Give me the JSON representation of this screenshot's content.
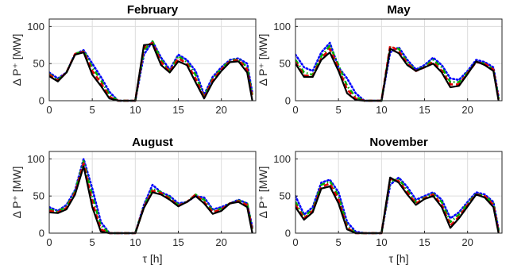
{
  "chart_data": [
    {
      "type": "line",
      "title": "February",
      "xlabel": "",
      "ylabel": "Δ P⁺ [MW]",
      "xlim": [
        0,
        24
      ],
      "ylim": [
        0,
        110
      ],
      "xticks": [
        0,
        5,
        10,
        15,
        20
      ],
      "yticks": [
        0,
        50,
        100
      ],
      "grid": true,
      "series": [
        {
          "color": "#0000ff",
          "dash": "dot",
          "x": [
            0,
            1,
            2,
            3,
            4,
            5,
            6,
            7,
            8,
            9,
            10,
            11,
            12,
            13,
            14,
            15,
            16,
            17,
            18,
            19,
            20,
            21,
            22,
            23,
            23.6
          ],
          "y": [
            38,
            30,
            38,
            63,
            68,
            50,
            32,
            12,
            0,
            0,
            0,
            62,
            80,
            58,
            42,
            62,
            55,
            40,
            8,
            32,
            45,
            55,
            57,
            50,
            10
          ]
        },
        {
          "color": "#00b000",
          "dash": "dashdot",
          "x": [
            0,
            1,
            2,
            3,
            4,
            5,
            6,
            7,
            8,
            9,
            10,
            11,
            12,
            13,
            14,
            15,
            16,
            17,
            18,
            19,
            20,
            21,
            22,
            23,
            23.6
          ],
          "y": [
            36,
            28,
            38,
            63,
            67,
            45,
            28,
            8,
            0,
            0,
            0,
            68,
            80,
            55,
            40,
            60,
            52,
            35,
            5,
            30,
            43,
            54,
            56,
            45,
            8
          ]
        },
        {
          "color": "#e00000",
          "dash": "dash",
          "x": [
            0,
            1,
            2,
            3,
            4,
            5,
            6,
            7,
            8,
            9,
            10,
            11,
            12,
            13,
            14,
            15,
            16,
            17,
            18,
            19,
            20,
            21,
            22,
            23,
            23.6
          ],
          "y": [
            35,
            27,
            38,
            63,
            66,
            40,
            24,
            5,
            0,
            0,
            0,
            72,
            78,
            52,
            39,
            57,
            50,
            30,
            4,
            28,
            42,
            53,
            55,
            42,
            4
          ]
        },
        {
          "color": "#000000",
          "dash": "solid",
          "x": [
            0,
            1,
            2,
            3,
            4,
            5,
            6,
            7,
            8,
            9,
            10,
            11,
            12,
            13,
            14,
            15,
            16,
            17,
            18,
            19,
            20,
            21,
            22,
            23,
            23.6
          ],
          "y": [
            33,
            26,
            38,
            62,
            65,
            35,
            20,
            3,
            0,
            0,
            0,
            75,
            76,
            48,
            38,
            53,
            48,
            25,
            3,
            25,
            40,
            52,
            53,
            38,
            0
          ]
        }
      ]
    },
    {
      "type": "line",
      "title": "May",
      "xlabel": "",
      "ylabel": "Δ P⁺ [MW]",
      "xlim": [
        0,
        24
      ],
      "ylim": [
        0,
        110
      ],
      "xticks": [
        0,
        5,
        10,
        15,
        20
      ],
      "yticks": [
        0,
        50,
        100
      ],
      "grid": true,
      "series": [
        {
          "color": "#0000ff",
          "dash": "dot",
          "x": [
            0,
            1,
            2,
            3,
            4,
            5,
            6,
            7,
            8,
            9,
            10,
            11,
            12,
            13,
            14,
            15,
            16,
            17,
            18,
            19,
            20,
            21,
            22,
            23,
            23.6
          ],
          "y": [
            62,
            45,
            40,
            65,
            78,
            45,
            30,
            10,
            0,
            0,
            0,
            65,
            72,
            55,
            42,
            48,
            58,
            48,
            30,
            28,
            40,
            55,
            52,
            45,
            5
          ]
        },
        {
          "color": "#00b000",
          "dash": "dashdot",
          "x": [
            0,
            1,
            2,
            3,
            4,
            5,
            6,
            7,
            8,
            9,
            10,
            11,
            12,
            13,
            14,
            15,
            16,
            17,
            18,
            19,
            20,
            21,
            22,
            23,
            23.6
          ],
          "y": [
            55,
            38,
            35,
            60,
            74,
            48,
            20,
            5,
            0,
            0,
            0,
            72,
            70,
            52,
            40,
            46,
            55,
            45,
            25,
            25,
            38,
            52,
            50,
            42,
            3
          ]
        },
        {
          "color": "#e00000",
          "dash": "dash",
          "x": [
            0,
            1,
            2,
            3,
            4,
            5,
            6,
            7,
            8,
            9,
            10,
            11,
            12,
            13,
            14,
            15,
            16,
            17,
            18,
            19,
            20,
            21,
            22,
            23,
            23.6
          ],
          "y": [
            52,
            34,
            33,
            57,
            70,
            44,
            15,
            3,
            0,
            0,
            0,
            74,
            67,
            50,
            40,
            45,
            52,
            40,
            22,
            22,
            37,
            52,
            50,
            42,
            2
          ]
        },
        {
          "color": "#000000",
          "dash": "solid",
          "x": [
            0,
            1,
            2,
            3,
            4,
            5,
            6,
            7,
            8,
            9,
            10,
            11,
            12,
            13,
            14,
            15,
            16,
            17,
            18,
            19,
            20,
            21,
            22,
            23,
            23.6
          ],
          "y": [
            50,
            32,
            32,
            55,
            65,
            40,
            10,
            1,
            0,
            0,
            0,
            70,
            64,
            48,
            40,
            45,
            50,
            38,
            18,
            20,
            36,
            53,
            48,
            40,
            0
          ]
        }
      ]
    },
    {
      "type": "line",
      "title": "August",
      "xlabel": "τ [h]",
      "ylabel": "Δ P⁺ [MW]",
      "xlim": [
        0,
        24
      ],
      "ylim": [
        0,
        110
      ],
      "xticks": [
        0,
        5,
        10,
        15,
        20
      ],
      "yticks": [
        0,
        50,
        100
      ],
      "grid": true,
      "series": [
        {
          "color": "#0000ff",
          "dash": "dot",
          "x": [
            0,
            1,
            2,
            3,
            4,
            5,
            6,
            7,
            8,
            9,
            10,
            11,
            12,
            13,
            14,
            15,
            16,
            17,
            18,
            19,
            20,
            21,
            22,
            23,
            23.6
          ],
          "y": [
            35,
            30,
            38,
            58,
            100,
            60,
            15,
            0,
            0,
            0,
            0,
            38,
            65,
            55,
            50,
            40,
            42,
            50,
            48,
            32,
            35,
            40,
            45,
            40,
            8
          ]
        },
        {
          "color": "#00b000",
          "dash": "dashdot",
          "x": [
            0,
            1,
            2,
            3,
            4,
            5,
            6,
            7,
            8,
            9,
            10,
            11,
            12,
            13,
            14,
            15,
            16,
            17,
            18,
            19,
            20,
            21,
            22,
            23,
            23.6
          ],
          "y": [
            32,
            29,
            36,
            56,
            97,
            50,
            10,
            0,
            0,
            0,
            0,
            36,
            60,
            55,
            48,
            38,
            42,
            52,
            45,
            30,
            33,
            40,
            44,
            40,
            5
          ]
        },
        {
          "color": "#e00000",
          "dash": "dash",
          "x": [
            0,
            1,
            2,
            3,
            4,
            5,
            6,
            7,
            8,
            9,
            10,
            11,
            12,
            13,
            14,
            15,
            16,
            17,
            18,
            19,
            20,
            21,
            22,
            23,
            23.6
          ],
          "y": [
            30,
            28,
            34,
            54,
            94,
            42,
            5,
            0,
            0,
            0,
            0,
            35,
            57,
            54,
            46,
            37,
            42,
            52,
            42,
            28,
            32,
            40,
            43,
            38,
            3
          ]
        },
        {
          "color": "#000000",
          "dash": "solid",
          "x": [
            0,
            1,
            2,
            3,
            4,
            5,
            6,
            7,
            8,
            9,
            10,
            11,
            12,
            13,
            14,
            15,
            16,
            17,
            18,
            19,
            20,
            21,
            22,
            23,
            23.6
          ],
          "y": [
            28,
            27,
            32,
            52,
            90,
            35,
            2,
            0,
            0,
            0,
            0,
            34,
            55,
            52,
            45,
            36,
            42,
            50,
            40,
            26,
            30,
            40,
            42,
            35,
            0
          ]
        }
      ]
    },
    {
      "type": "line",
      "title": "November",
      "xlabel": "τ [h]",
      "ylabel": "Δ P⁺ [MW]",
      "xlim": [
        0,
        24
      ],
      "ylim": [
        0,
        110
      ],
      "xticks": [
        0,
        5,
        10,
        15,
        20
      ],
      "yticks": [
        0,
        50,
        100
      ],
      "grid": true,
      "series": [
        {
          "color": "#0000ff",
          "dash": "dot",
          "x": [
            0,
            1,
            2,
            3,
            4,
            5,
            6,
            7,
            8,
            9,
            10,
            11,
            12,
            13,
            14,
            15,
            16,
            17,
            18,
            19,
            20,
            21,
            22,
            23,
            23.6
          ],
          "y": [
            50,
            25,
            35,
            68,
            72,
            55,
            15,
            2,
            0,
            0,
            0,
            65,
            75,
            62,
            45,
            50,
            55,
            45,
            20,
            28,
            42,
            55,
            52,
            42,
            5
          ]
        },
        {
          "color": "#00b000",
          "dash": "dashdot",
          "x": [
            0,
            1,
            2,
            3,
            4,
            5,
            6,
            7,
            8,
            9,
            10,
            11,
            12,
            13,
            14,
            15,
            16,
            17,
            18,
            19,
            20,
            21,
            22,
            23,
            23.6
          ],
          "y": [
            42,
            22,
            32,
            65,
            70,
            50,
            10,
            0,
            0,
            0,
            0,
            70,
            73,
            58,
            42,
            48,
            53,
            42,
            15,
            25,
            40,
            53,
            50,
            40,
            3
          ]
        },
        {
          "color": "#e00000",
          "dash": "dash",
          "x": [
            0,
            1,
            2,
            3,
            4,
            5,
            6,
            7,
            8,
            9,
            10,
            11,
            12,
            13,
            14,
            15,
            16,
            17,
            18,
            19,
            20,
            21,
            22,
            23,
            23.6
          ],
          "y": [
            38,
            20,
            30,
            62,
            67,
            45,
            7,
            0,
            0,
            0,
            0,
            73,
            70,
            55,
            40,
            47,
            52,
            38,
            10,
            22,
            38,
            52,
            50,
            38,
            2
          ]
        },
        {
          "color": "#000000",
          "dash": "solid",
          "x": [
            0,
            1,
            2,
            3,
            4,
            5,
            6,
            7,
            8,
            9,
            10,
            11,
            12,
            13,
            14,
            15,
            16,
            17,
            18,
            19,
            20,
            21,
            22,
            23,
            23.6
          ],
          "y": [
            35,
            18,
            28,
            60,
            63,
            40,
            5,
            0,
            0,
            0,
            0,
            75,
            68,
            52,
            38,
            46,
            50,
            35,
            7,
            20,
            36,
            52,
            48,
            35,
            0
          ]
        }
      ]
    }
  ]
}
